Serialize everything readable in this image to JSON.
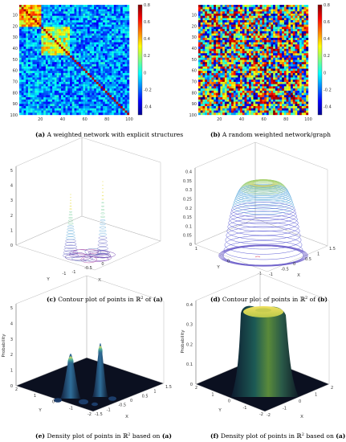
{
  "panels": {
    "a": {
      "caption_label": "(a)",
      "caption_text": " A weighted network with explicit structures",
      "chart_data": {
        "type": "heatmap",
        "x_ticks": [
          "20",
          "40",
          "60",
          "80",
          "100"
        ],
        "y_ticks": [
          "10",
          "20",
          "30",
          "40",
          "50",
          "60",
          "70",
          "80",
          "90",
          "100"
        ],
        "xlim": [
          1,
          100
        ],
        "ylim": [
          1,
          100
        ],
        "colorbar_ticks": [
          "0.8",
          "0.6",
          "0.4",
          "0.2",
          "0",
          "-0.2",
          "-0.4"
        ],
        "color_range": [
          -0.5,
          0.8
        ],
        "blocks": [
          [
            1,
            20
          ],
          [
            21,
            45
          ],
          [
            46,
            100
          ]
        ]
      }
    },
    "b": {
      "caption_label": "(b)",
      "caption_text": " A random weighted network/graph",
      "chart_data": {
        "type": "heatmap",
        "x_ticks": [
          "20",
          "40",
          "60",
          "80",
          "100"
        ],
        "y_ticks": [
          "10",
          "20",
          "30",
          "40",
          "50",
          "60",
          "70",
          "80",
          "90",
          "100"
        ],
        "xlim": [
          1,
          100
        ],
        "ylim": [
          1,
          100
        ],
        "colorbar_ticks": [
          "0.8",
          "0.6",
          "0.4",
          "0.2",
          "0",
          "-0.2",
          "-0.4"
        ],
        "color_range": [
          -0.5,
          0.8
        ]
      }
    },
    "c": {
      "caption_label": "(c)",
      "caption_text": " Contour plot of points in ",
      "caption_math": "ℝ",
      "caption_sup": "2",
      "caption_tail": " of ",
      "caption_ref": "(a)",
      "chart_data": {
        "type": "surface-contour",
        "z_ticks": [
          "0",
          "1",
          "2",
          "3",
          "4",
          "5"
        ],
        "zlim": [
          0,
          5
        ],
        "x_ticks": [
          "-1",
          "-0.5",
          "0"
        ],
        "y_ticks": [
          "-1"
        ],
        "x_label": "X",
        "y_label": "Y"
      }
    },
    "d": {
      "caption_label": "(d)",
      "caption_text": " Contour plot of points in ",
      "caption_math": "ℝ",
      "caption_sup": "2",
      "caption_tail": " of ",
      "caption_ref": "(b)",
      "chart_data": {
        "type": "surface-contour",
        "z_ticks": [
          "0",
          "0.05",
          "0.1",
          "0.15",
          "0.2",
          "0.25",
          "0.3",
          "0.35",
          "0.4"
        ],
        "zlim": [
          0,
          0.42
        ],
        "x_ticks": [
          "-1",
          "-0.5",
          "0",
          "0.5",
          "1",
          "1.5"
        ],
        "y_ticks": [
          "1",
          "0",
          "-1"
        ],
        "x_label": "X",
        "y_label": "Y"
      }
    },
    "e": {
      "caption_label": "(e)",
      "caption_text": " Density plot of points in ",
      "caption_math": "ℝ",
      "caption_sup": "2",
      "caption_tail": " based on ",
      "caption_ref": "(a)",
      "chart_data": {
        "type": "surface",
        "z_label": "Probability",
        "z_ticks": [
          "0",
          "1",
          "2",
          "3",
          "4",
          "5"
        ],
        "zlim": [
          0,
          5
        ],
        "x_ticks": [
          "-1.5",
          "-1",
          "-0.5",
          "0",
          "0.5",
          "1",
          "1.5"
        ],
        "y_ticks": [
          "2",
          "1",
          "0",
          "-1",
          "-2"
        ],
        "x_label": "X",
        "y_label": "Y"
      }
    },
    "f": {
      "caption_label": "(f)",
      "caption_text": " Density plot of points in ",
      "caption_math": "ℝ",
      "caption_sup": "2",
      "caption_tail": " based on ",
      "caption_ref": "(a)",
      "chart_data": {
        "type": "surface",
        "z_label": "Probability",
        "z_ticks": [
          "0",
          "0.1",
          "0.2",
          "0.3",
          "0.4"
        ],
        "zlim": [
          0,
          0.42
        ],
        "x_ticks": [
          "-2",
          "-1",
          "0",
          "1",
          "2"
        ],
        "y_ticks": [
          "2",
          "1",
          "0",
          "-1",
          "-2"
        ],
        "x_label": "X",
        "y_label": "Y"
      }
    }
  }
}
